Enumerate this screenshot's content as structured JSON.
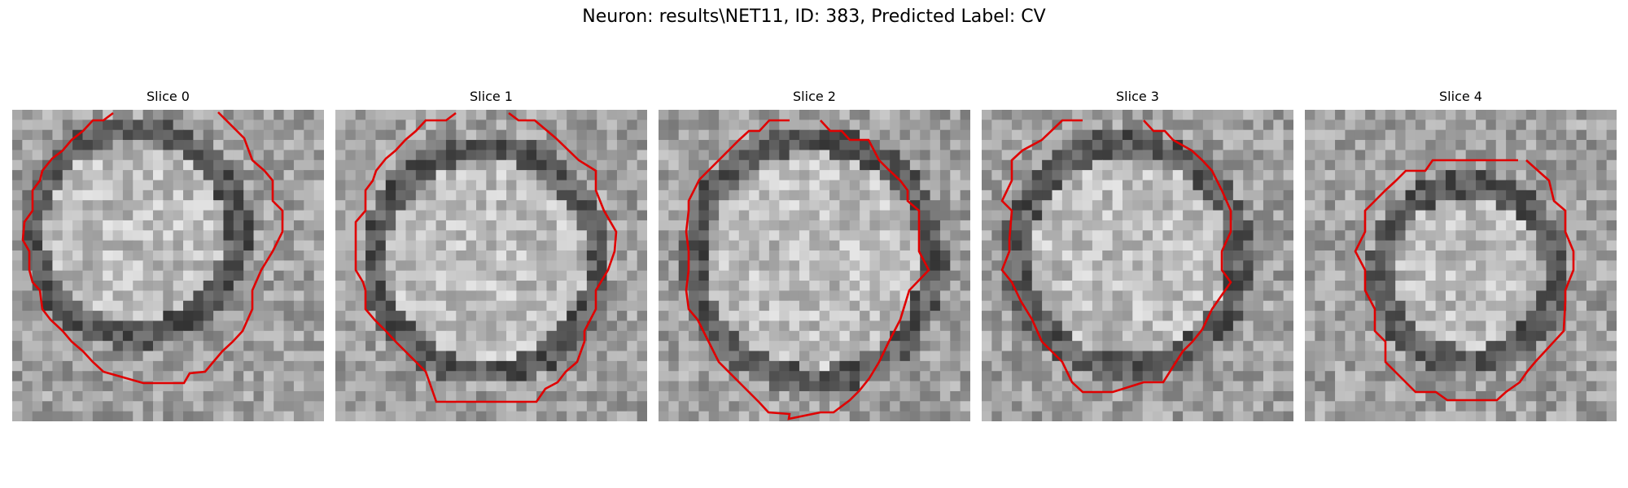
{
  "figure": {
    "title": "Neuron: results\\NET11, ID: 383, Predicted Label: CV",
    "contour_color": "#e00000",
    "panels": [
      {
        "title": "Slice 0"
      },
      {
        "title": "Slice 1"
      },
      {
        "title": "Slice 2"
      },
      {
        "title": "Slice 3"
      },
      {
        "title": "Slice 4"
      }
    ]
  }
}
